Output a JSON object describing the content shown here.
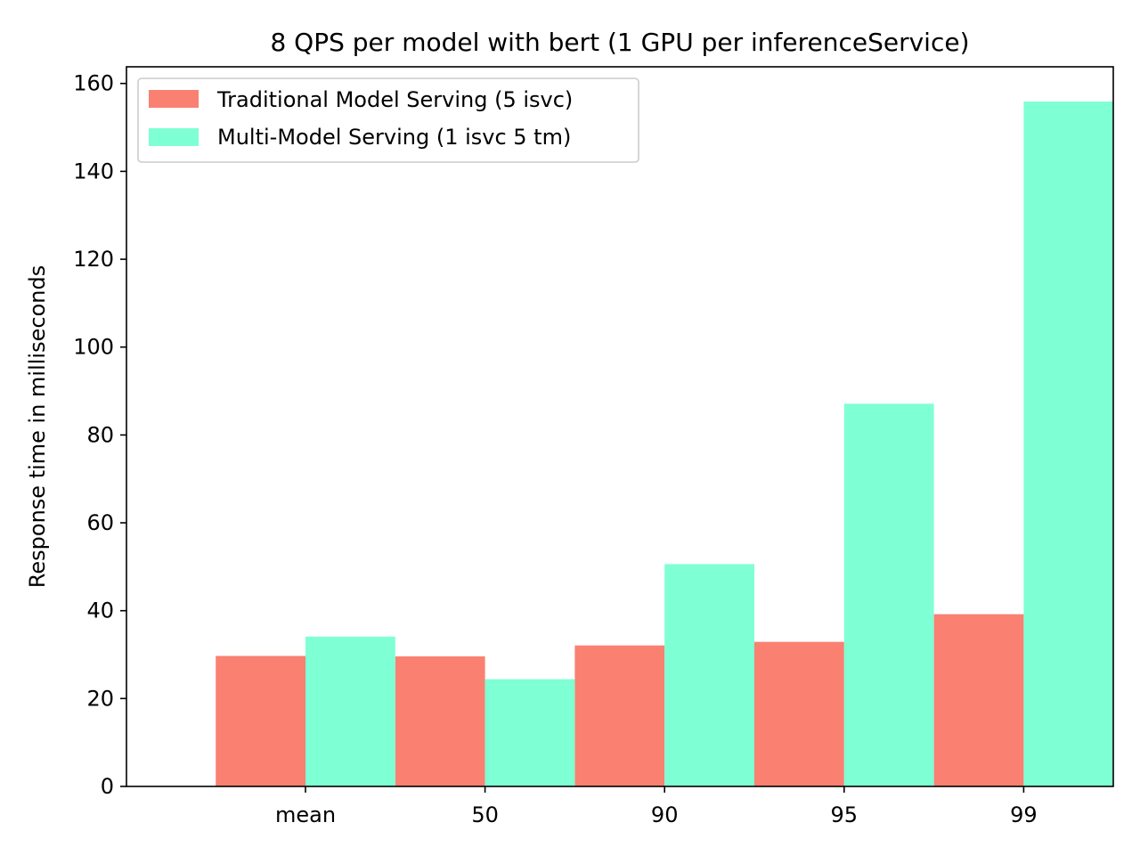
{
  "chart_data": {
    "type": "bar",
    "title": "8 QPS per model with bert (1 GPU per inferenceService)",
    "xlabel": "",
    "ylabel": "Response time in milliseconds",
    "categories": [
      "mean",
      "50",
      "90",
      "95",
      "99"
    ],
    "series": [
      {
        "name": "Traditional Model Serving (5 isvc)",
        "color": "#fa8072",
        "values": [
          29.7,
          29.6,
          32.1,
          32.9,
          39.2
        ]
      },
      {
        "name": "Multi-Model Serving (1 isvc 5 tm)",
        "color": "#7fffd4",
        "values": [
          34.1,
          24.4,
          50.6,
          87.1,
          155.9
        ]
      }
    ],
    "yticks": [
      0,
      20,
      40,
      60,
      80,
      100,
      120,
      140,
      160
    ],
    "ylim": [
      0,
      163.8
    ],
    "legend": "upper-left",
    "grid": false
  }
}
